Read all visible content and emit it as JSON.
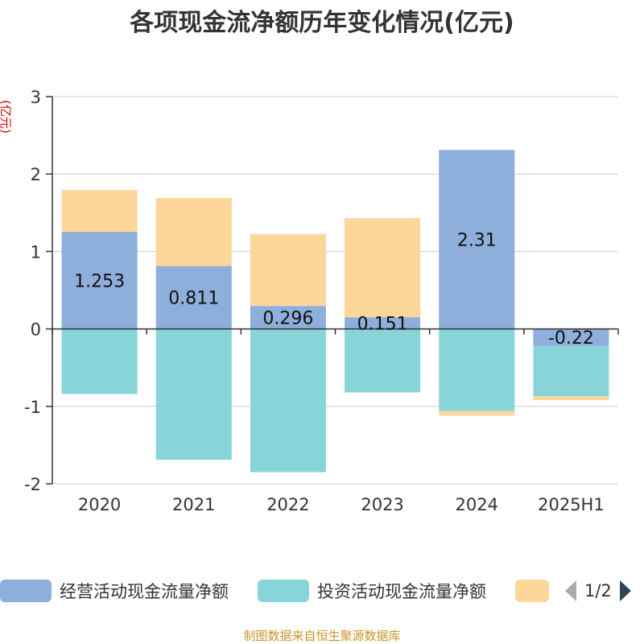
{
  "title": "各项现金流净额历年变化情况(亿元)",
  "source_note": "制图数据来自恒生聚源数据库",
  "legend": {
    "pager_text": "1/2"
  },
  "chart_data": {
    "type": "bar",
    "stacked": true,
    "title": "各项现金流净额历年变化情况(亿元)",
    "ylabel": "(亿元)",
    "xlabel": "",
    "categories": [
      "2020",
      "2021",
      "2022",
      "2023",
      "2024",
      "2025H1"
    ],
    "ylim": [
      -2,
      3
    ],
    "yticks": [
      -2,
      -1,
      0,
      1,
      2,
      3
    ],
    "grid": true,
    "legend_position": "bottom",
    "series": [
      {
        "name": "经营活动现金流量净额",
        "color": "#8eaedb",
        "values": [
          1.253,
          0.811,
          0.296,
          0.151,
          2.31,
          -0.22
        ],
        "labels": [
          "1.253",
          "0.811",
          "0.296",
          "0.151",
          "2.31",
          "-0.22"
        ]
      },
      {
        "name": "投资活动现金流量净额",
        "color": "#87d5d8",
        "values": [
          -0.84,
          -1.69,
          -1.85,
          -0.82,
          -1.06,
          -0.65
        ]
      },
      {
        "name": "",
        "color": "#fdd699",
        "values": [
          0.54,
          0.88,
          0.93,
          1.28,
          -0.06,
          -0.05
        ]
      }
    ]
  }
}
